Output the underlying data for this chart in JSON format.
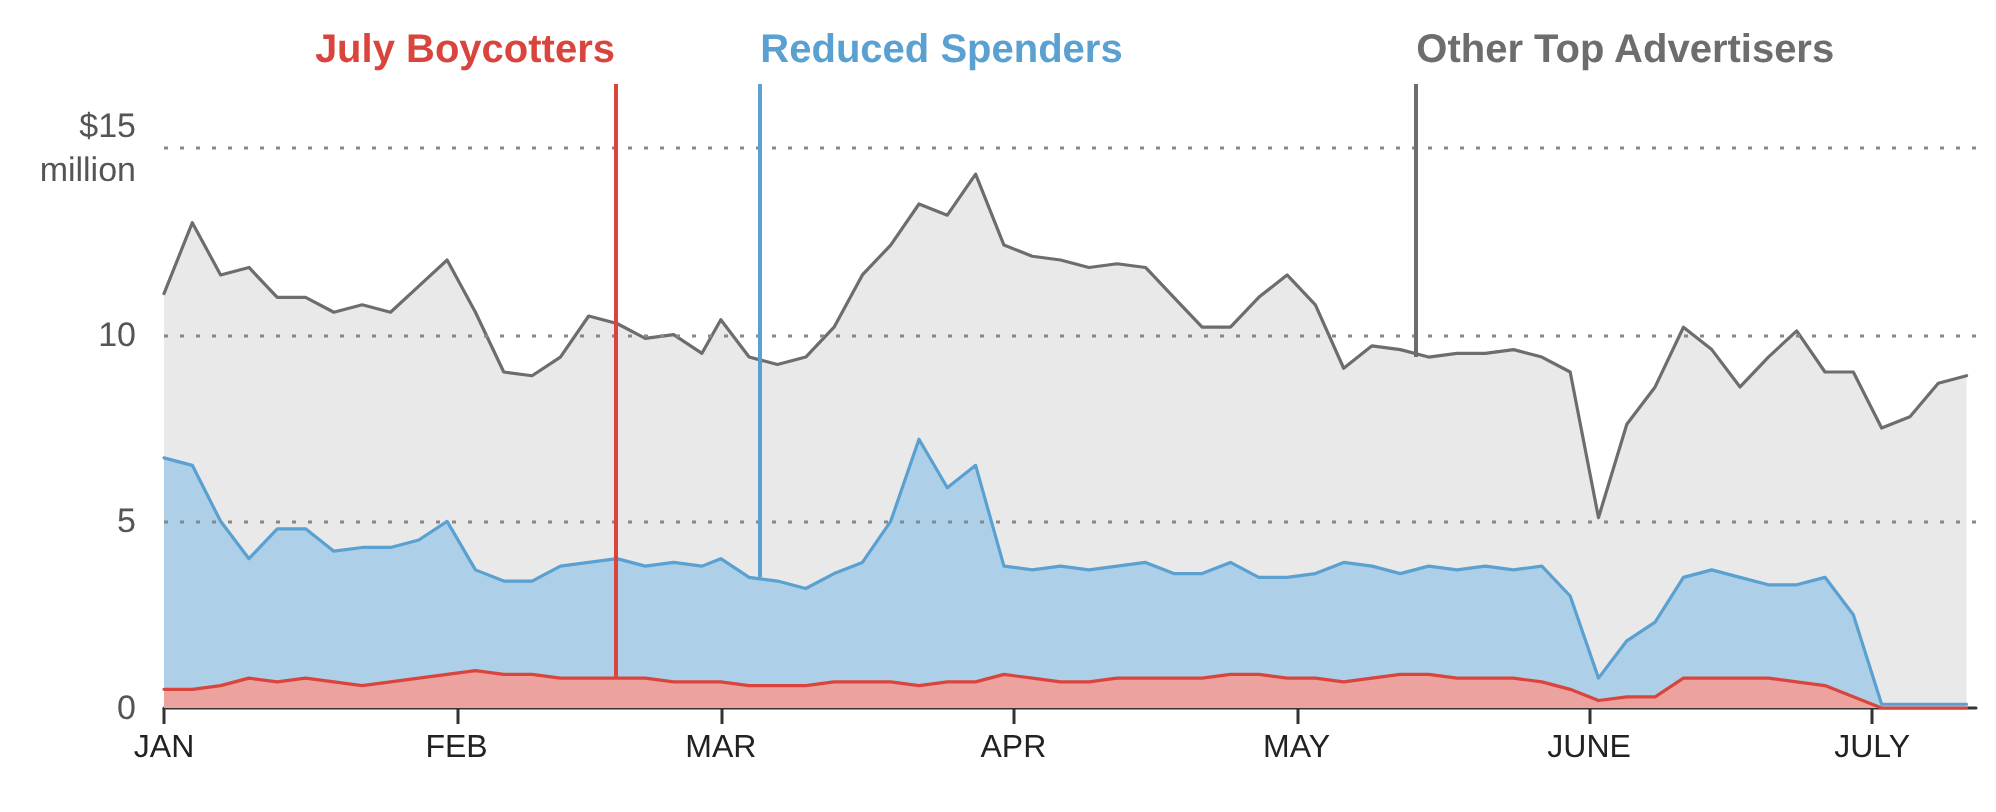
{
  "chart_data": {
    "type": "area",
    "x": [
      "--01-01",
      "--01-04",
      "--01-07",
      "--01-10",
      "--01-13",
      "--01-16",
      "--01-19",
      "--01-22",
      "--01-25",
      "--01-28",
      "--01-31",
      "--02-03",
      "--02-06",
      "--02-09",
      "--02-12",
      "--02-15",
      "--02-18",
      "--02-21",
      "--02-24",
      "--02-27",
      "--03-01",
      "--03-04",
      "--03-07",
      "--03-10",
      "--03-13",
      "--03-16",
      "--03-19",
      "--03-22",
      "--03-25",
      "--03-28",
      "--03-31",
      "--04-03",
      "--04-06",
      "--04-09",
      "--04-12",
      "--04-15",
      "--04-18",
      "--04-21",
      "--04-24",
      "--04-27",
      "--04-30",
      "--05-03",
      "--05-06",
      "--05-09",
      "--05-12",
      "--05-15",
      "--05-18",
      "--05-21",
      "--05-24",
      "--05-27",
      "--05-30",
      "--06-02",
      "--06-05",
      "--06-08",
      "--06-11",
      "--06-14",
      "--06-17",
      "--06-20",
      "--06-23",
      "--06-26",
      "--06-29",
      "--07-02",
      "--07-05",
      "--07-08",
      "--07-11"
    ],
    "series": [
      {
        "name": "Other Top Advertisers",
        "color": "#6d6d6d",
        "values": [
          11.1,
          13.0,
          11.6,
          11.8,
          11.0,
          11.0,
          10.6,
          10.8,
          10.6,
          11.3,
          12.0,
          10.6,
          9.0,
          8.9,
          9.4,
          10.5,
          10.3,
          9.9,
          10.0,
          9.5,
          10.4,
          9.4,
          9.2,
          9.4,
          10.2,
          11.6,
          12.4,
          13.5,
          13.2,
          14.3,
          12.4,
          12.1,
          12.0,
          11.8,
          11.9,
          11.8,
          11.0,
          10.2,
          10.2,
          11.0,
          11.6,
          10.8,
          9.1,
          9.7,
          9.6,
          9.4,
          9.5,
          9.5,
          9.6,
          9.4,
          9.0,
          5.1,
          7.6,
          8.6,
          10.2,
          9.6,
          8.6,
          9.4,
          10.1,
          9.0,
          9.0,
          7.5,
          7.8,
          8.7,
          8.9
        ]
      },
      {
        "name": "Reduced Spenders",
        "color": "#5aa0d0",
        "values": [
          6.7,
          6.5,
          5.0,
          4.0,
          4.8,
          4.8,
          4.2,
          4.3,
          4.3,
          4.5,
          5.0,
          3.7,
          3.4,
          3.4,
          3.8,
          3.9,
          4.0,
          3.8,
          3.9,
          3.8,
          4.0,
          3.5,
          3.4,
          3.2,
          3.6,
          3.9,
          5.0,
          7.2,
          5.9,
          6.5,
          3.8,
          3.7,
          3.8,
          3.7,
          3.8,
          3.9,
          3.6,
          3.6,
          3.9,
          3.5,
          3.5,
          3.6,
          3.9,
          3.8,
          3.6,
          3.8,
          3.7,
          3.8,
          3.7,
          3.8,
          3.0,
          0.8,
          1.8,
          2.3,
          3.5,
          3.7,
          3.5,
          3.3,
          3.3,
          3.5,
          2.5,
          0.1,
          0.1,
          0.1,
          0.1
        ]
      },
      {
        "name": "July Boycotters",
        "color": "#d9453d",
        "values": [
          0.5,
          0.5,
          0.6,
          0.8,
          0.7,
          0.8,
          0.7,
          0.6,
          0.7,
          0.8,
          0.9,
          1.0,
          0.9,
          0.9,
          0.8,
          0.8,
          0.8,
          0.8,
          0.7,
          0.7,
          0.7,
          0.6,
          0.6,
          0.6,
          0.7,
          0.7,
          0.7,
          0.6,
          0.7,
          0.7,
          0.9,
          0.8,
          0.7,
          0.7,
          0.8,
          0.8,
          0.8,
          0.8,
          0.9,
          0.9,
          0.8,
          0.8,
          0.7,
          0.8,
          0.9,
          0.9,
          0.8,
          0.8,
          0.8,
          0.7,
          0.5,
          0.2,
          0.3,
          0.3,
          0.8,
          0.8,
          0.8,
          0.8,
          0.7,
          0.6,
          0.3,
          0.0,
          0.0,
          0.0,
          0.0
        ]
      }
    ],
    "xlim": [
      "--01-01",
      "--07-12"
    ],
    "xticks": [
      {
        "value": "--01-01",
        "label": "JAN"
      },
      {
        "value": "--02-01",
        "label": "FEB"
      },
      {
        "value": "--03-01",
        "label": "MAR"
      },
      {
        "value": "--04-01",
        "label": "APR"
      },
      {
        "value": "--05-01",
        "label": "MAY"
      },
      {
        "value": "--06-01",
        "label": "JUNE"
      },
      {
        "value": "--07-01",
        "label": "JULY"
      }
    ],
    "ylim": [
      0,
      15
    ],
    "yticks": [
      0,
      5,
      10,
      {
        "value": 15,
        "label": "$15 million"
      }
    ],
    "grid": "y",
    "legend": false,
    "marker": "none",
    "line_style": "solid"
  }
}
